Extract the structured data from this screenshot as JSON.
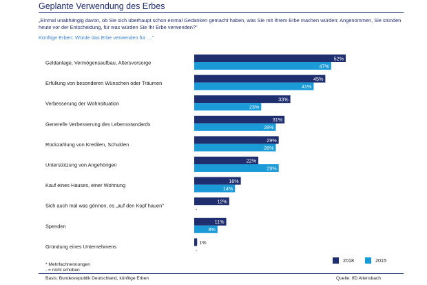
{
  "chart_data": {
    "type": "bar",
    "orientation": "horizontal",
    "title": "Geplante Verwendung des Erbes",
    "question": "„Einmal unabhängig davon, ob Sie sich überhaupt schon einmal Gedanken gemacht haben, was Sie mit Ihrem Erbe machen würden: Angenommen, Sie stünden heute vor der Entscheidung, für was würden Sie Ihr Erbe verwenden?\"",
    "subtitle": "Künftige Erben: Würde das Erbe verwenden für …\"",
    "categories": [
      "Geldanlage, Vermögensaufbau, Altersvorsorge",
      "Erfüllung von besonderen Wünschen oder Träumen",
      "Verbesserung der Wohnsituation",
      "Generelle Verbesserung des Lebensstandards",
      "Rückzahlung von Krediten, Schulden",
      "Unterstützung von Angehörigen",
      "Kauf eines Hauses, einer Wohnung",
      "Sich auch mal was gönnen, es „auf den Kopf hauen\"",
      "Spenden",
      "Gründung eines Unternehmens"
    ],
    "series": [
      {
        "name": "2018",
        "color": "#1f2e6e",
        "values": [
          52,
          45,
          33,
          31,
          29,
          22,
          16,
          12,
          11,
          1
        ]
      },
      {
        "name": "2015",
        "color": "#1a9ad6",
        "values": [
          47,
          41,
          23,
          28,
          28,
          29,
          14,
          null,
          8,
          null
        ]
      }
    ],
    "missing_marker": "-",
    "value_suffix": "%",
    "xlim": [
      0,
      52
    ],
    "legend_position": "bottom-right"
  },
  "footnotes": [
    "* Mehrfachnennungen",
    "- = nicht erhoben"
  ],
  "basis": "Basis: Bundesrepublik Deutschland, künftige Erben",
  "source": "Quelle: IfD Allensbach"
}
